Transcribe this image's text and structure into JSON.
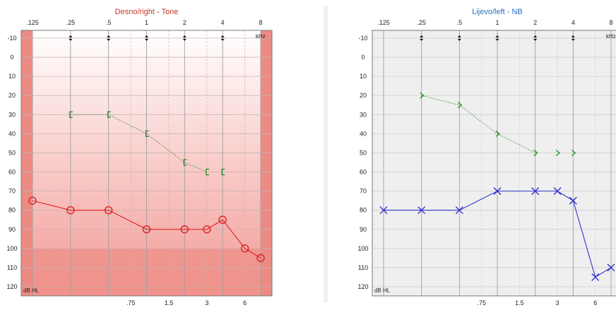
{
  "chart_data": [
    {
      "type": "line",
      "title": "Desno/right - Tone",
      "title_color": "#c0392b",
      "plot_style": "red-gradient",
      "x_scale": "log",
      "xlim": [
        0.125,
        8
      ],
      "ylim": [
        -10,
        120
      ],
      "y_inverted": true,
      "top_tick_labels": [
        ".125",
        ".25",
        ".5",
        "1",
        "2",
        "4",
        "8"
      ],
      "top_tick_values": [
        0.125,
        0.25,
        0.5,
        1,
        2,
        4,
        8
      ],
      "bottom_tick_labels": [
        ".75",
        "1.5",
        "3",
        "6"
      ],
      "bottom_tick_values": [
        0.75,
        1.5,
        3,
        6
      ],
      "y_ticks": [
        -10,
        0,
        10,
        20,
        30,
        40,
        50,
        60,
        70,
        80,
        90,
        100,
        110,
        120
      ],
      "unit_label": "kHz",
      "y_unit_label": "dB HL",
      "grid": true,
      "marker_freqs": [
        0.25,
        0.5,
        1,
        2,
        4
      ],
      "series": [
        {
          "marker": "circle",
          "color": "#e02020",
          "line_style": "solid",
          "points": [
            {
              "x": 0.125,
              "y": 75
            },
            {
              "x": 0.25,
              "y": 80
            },
            {
              "x": 0.5,
              "y": 80
            },
            {
              "x": 1,
              "y": 90
            },
            {
              "x": 2,
              "y": 90
            },
            {
              "x": 3,
              "y": 90
            },
            {
              "x": 4,
              "y": 85
            },
            {
              "x": 6,
              "y": 100
            },
            {
              "x": 8,
              "y": 105
            }
          ]
        },
        {
          "marker": "bracket-left",
          "color": "#2e8b2e",
          "line_style": "dotted",
          "points": [
            {
              "x": 0.25,
              "y": 30
            },
            {
              "x": 0.5,
              "y": 30
            },
            {
              "x": 1,
              "y": 40
            },
            {
              "x": 2,
              "y": 55
            },
            {
              "x": 3,
              "y": 60
            },
            {
              "x": 4,
              "y": 60,
              "connected": false
            }
          ]
        }
      ]
    },
    {
      "type": "line",
      "title": "Lijevo/left - NB",
      "title_color": "#1f6fc0",
      "plot_style": "gray",
      "x_scale": "log",
      "xlim": [
        0.125,
        8
      ],
      "ylim": [
        -10,
        120
      ],
      "y_inverted": true,
      "top_tick_labels": [
        ".125",
        ".25",
        ".5",
        "1",
        "2",
        "4",
        "8"
      ],
      "top_tick_values": [
        0.125,
        0.25,
        0.5,
        1,
        2,
        4,
        8
      ],
      "bottom_tick_labels": [
        ".75",
        "1.5",
        "3",
        "6"
      ],
      "bottom_tick_values": [
        0.75,
        1.5,
        3,
        6
      ],
      "y_ticks": [
        -10,
        0,
        10,
        20,
        30,
        40,
        50,
        60,
        70,
        80,
        90,
        100,
        110,
        120
      ],
      "unit_label": "kHz",
      "y_unit_label": "dB HL",
      "grid": true,
      "marker_freqs": [
        0.25,
        0.5,
        1,
        2,
        4
      ],
      "series": [
        {
          "marker": "cross",
          "color": "#3333cc",
          "line_style": "solid",
          "points": [
            {
              "x": 0.125,
              "y": 80
            },
            {
              "x": 0.25,
              "y": 80
            },
            {
              "x": 0.5,
              "y": 80
            },
            {
              "x": 1,
              "y": 70
            },
            {
              "x": 2,
              "y": 70
            },
            {
              "x": 3,
              "y": 70
            },
            {
              "x": 4,
              "y": 75
            },
            {
              "x": 6,
              "y": 115
            },
            {
              "x": 8,
              "y": 110
            }
          ]
        },
        {
          "marker": "chevron-right",
          "color": "#2e8b2e",
          "line_style": "dotted",
          "points": [
            {
              "x": 0.25,
              "y": 20
            },
            {
              "x": 0.5,
              "y": 25
            },
            {
              "x": 1,
              "y": 40
            },
            {
              "x": 2,
              "y": 50
            },
            {
              "x": 3,
              "y": 50,
              "connected": false
            },
            {
              "x": 4,
              "y": 50,
              "connected": false
            }
          ]
        }
      ]
    }
  ]
}
